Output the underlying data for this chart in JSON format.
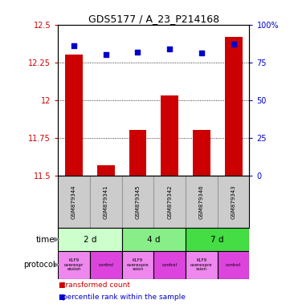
{
  "title": "GDS5177 / A_23_P214168",
  "samples": [
    "GSM879344",
    "GSM879341",
    "GSM879345",
    "GSM879342",
    "GSM879346",
    "GSM879343"
  ],
  "transformed_counts": [
    12.3,
    11.57,
    11.8,
    12.03,
    11.8,
    12.42
  ],
  "percentile_ranks": [
    86,
    80,
    82,
    84,
    81,
    87
  ],
  "ylim_left": [
    11.5,
    12.5
  ],
  "ylim_right": [
    0,
    100
  ],
  "yticks_left": [
    11.5,
    11.75,
    12.0,
    12.25,
    12.5
  ],
  "yticks_right": [
    0,
    25,
    50,
    75,
    100
  ],
  "ytick_labels_left": [
    "11.5",
    "11.75",
    "12",
    "12.25",
    "12.5"
  ],
  "ytick_labels_right": [
    "0",
    "25",
    "50",
    "75",
    "100%"
  ],
  "time_labels": [
    "2 d",
    "4 d",
    "7 d"
  ],
  "time_colors": [
    "#ccffcc",
    "#88ee88",
    "#44dd44"
  ],
  "protocol_labels": [
    "KLF9\noverexpr\nession",
    "control",
    "KLF9\noverexpre\nssion",
    "control",
    "KLF9\noverexpre\nssion",
    "control"
  ],
  "protocol_colors": [
    "#ee88ee",
    "#dd44dd",
    "#ee88ee",
    "#dd44dd",
    "#ee88ee",
    "#dd44dd"
  ],
  "bar_color": "#cc0000",
  "dot_color": "#0000cc",
  "bar_width": 0.55,
  "dot_size": 22,
  "left_label_color": "#cc0000",
  "right_label_color": "#0000cc",
  "bg_color": "#ffffff",
  "sample_box_color": "#cccccc",
  "sample_box_border": "#999999",
  "legend_bar_color": "#cc0000",
  "legend_dot_color": "#0000cc"
}
